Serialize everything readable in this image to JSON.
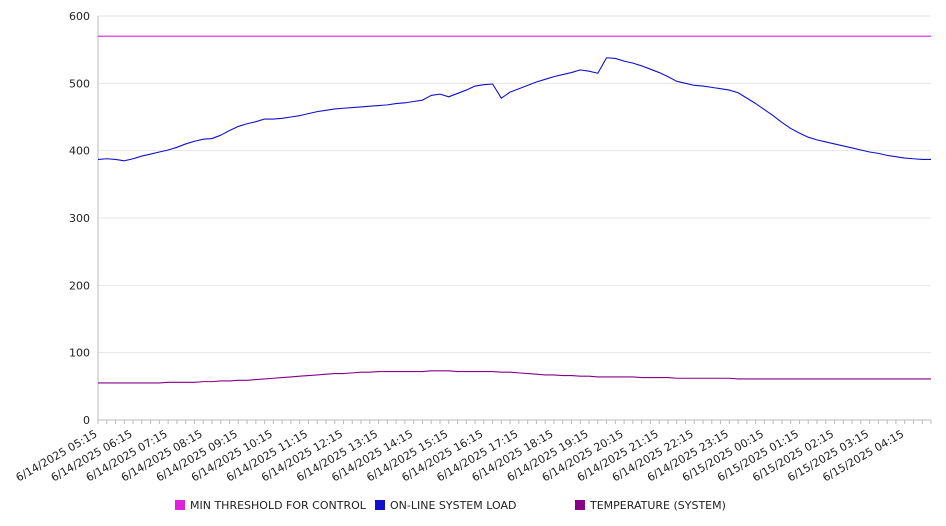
{
  "chart_data": {
    "type": "line",
    "title": "",
    "xlabel": "",
    "ylabel": "",
    "ylim": [
      0,
      600
    ],
    "yticks": [
      0,
      100,
      200,
      300,
      400,
      500,
      600
    ],
    "grid": "horizontal",
    "legend_position": "bottom",
    "x_start": "6/14/2025 05:15",
    "x_interval": "15 min",
    "x_tick_labels": [
      "6/14/2025 05:15",
      "6/14/2025 06:15",
      "6/14/2025 07:15",
      "6/14/2025 08:15",
      "6/14/2025 09:15",
      "6/14/2025 10:15",
      "6/14/2025 11:15",
      "6/14/2025 12:15",
      "6/14/2025 13:15",
      "6/14/2025 14:15",
      "6/14/2025 15:15",
      "6/14/2025 16:15",
      "6/14/2025 17:15",
      "6/14/2025 18:15",
      "6/14/2025 19:15",
      "6/14/2025 20:15",
      "6/14/2025 21:15",
      "6/14/2025 22:15",
      "6/14/2025 23:15",
      "6/15/2025 00:15",
      "6/15/2025 01:15",
      "6/15/2025 02:15",
      "6/15/2025 03:15",
      "6/15/2025 04:15"
    ],
    "series": [
      {
        "name": "MIN THRESHOLD FOR CONTROL",
        "color": "#dd22dd",
        "values": [
          570,
          570,
          570,
          570,
          570,
          570,
          570,
          570,
          570,
          570,
          570,
          570,
          570,
          570,
          570,
          570,
          570,
          570,
          570,
          570,
          570,
          570,
          570,
          570,
          570,
          570,
          570,
          570,
          570,
          570,
          570,
          570,
          570,
          570,
          570,
          570,
          570,
          570,
          570,
          570,
          570,
          570,
          570,
          570,
          570,
          570,
          570,
          570,
          570,
          570,
          570,
          570,
          570,
          570,
          570,
          570,
          570,
          570,
          570,
          570,
          570,
          570,
          570,
          570,
          570,
          570,
          570,
          570,
          570,
          570,
          570,
          570,
          570,
          570,
          570,
          570,
          570,
          570,
          570,
          570,
          570,
          570,
          570,
          570,
          570,
          570,
          570,
          570,
          570,
          570,
          570,
          570,
          570,
          570,
          570,
          570
        ]
      },
      {
        "name": "ON-LINE SYSTEM LOAD",
        "color": "#1111cc",
        "values": [
          387,
          388,
          387,
          385,
          388,
          392,
          395,
          398,
          401,
          405,
          410,
          414,
          417,
          418,
          423,
          430,
          436,
          440,
          443,
          447,
          447,
          448,
          450,
          452,
          455,
          458,
          460,
          462,
          463,
          464,
          465,
          466,
          467,
          468,
          470,
          471,
          473,
          475,
          482,
          484,
          480,
          485,
          490,
          496,
          498,
          499,
          478,
          487,
          492,
          497,
          502,
          506,
          510,
          513,
          516,
          520,
          518,
          515,
          538,
          537,
          533,
          530,
          526,
          521,
          516,
          510,
          503,
          500,
          497,
          496,
          494,
          492,
          490,
          486,
          478,
          470,
          461,
          452,
          442,
          433,
          426,
          420,
          416,
          413,
          410,
          407,
          404,
          401,
          398,
          396,
          393,
          391,
          389,
          388,
          387,
          387
        ]
      },
      {
        "name": "TEMPERATURE (SYSTEM)",
        "color": "#880088",
        "values": [
          55,
          55,
          55,
          55,
          55,
          55,
          55,
          55,
          56,
          56,
          56,
          56,
          57,
          57,
          58,
          58,
          59,
          59,
          60,
          61,
          62,
          63,
          64,
          65,
          66,
          67,
          68,
          69,
          69,
          70,
          71,
          71,
          72,
          72,
          72,
          72,
          72,
          72,
          73,
          73,
          73,
          72,
          72,
          72,
          72,
          72,
          71,
          71,
          70,
          69,
          68,
          67,
          67,
          66,
          66,
          65,
          65,
          64,
          64,
          64,
          64,
          64,
          63,
          63,
          63,
          63,
          62,
          62,
          62,
          62,
          62,
          62,
          62,
          61,
          61,
          61,
          61,
          61,
          61,
          61,
          61,
          61,
          61,
          61,
          61,
          61,
          61,
          61,
          61,
          61,
          61,
          61,
          61,
          61,
          61,
          61
        ]
      }
    ]
  }
}
